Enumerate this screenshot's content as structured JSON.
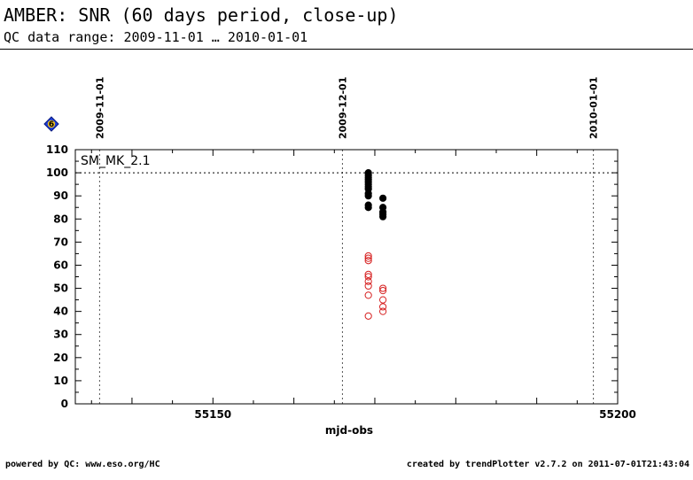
{
  "header": {
    "title": "AMBER: SNR (60 days period, close-up)",
    "subtitle": "QC data range: 2009-11-01 … 2010-01-01"
  },
  "footer": {
    "left": "powered by QC: www.eso.org/HC",
    "right": "created by trendPlotter v2.7.2 on 2011-07-01T21:43:04"
  },
  "badge": {
    "text": "6",
    "icon": "blue-diamond-icon"
  },
  "chart_data": {
    "type": "scatter",
    "xlabel": "mjd-obs",
    "ylabel": "",
    "xlim": [
      55133.0,
      55200.0
    ],
    "ylim": [
      0,
      110
    ],
    "xticks": [
      55150,
      55200
    ],
    "yticks": [
      0,
      10,
      20,
      30,
      40,
      50,
      60,
      70,
      80,
      90,
      100,
      110
    ],
    "reference_line": 100,
    "panel_label": "SM_MK_2.1",
    "date_markers": [
      {
        "label": "2009-11-01",
        "x": 55136.0
      },
      {
        "label": "2009-12-01",
        "x": 55166.0
      },
      {
        "label": "2010-01-01",
        "x": 55197.0
      }
    ],
    "grid": false,
    "series": [
      {
        "marker": "filled-circle",
        "color": "#000000",
        "points": [
          {
            "x": 55169.2,
            "y": 100
          },
          {
            "x": 55169.2,
            "y": 99
          },
          {
            "x": 55169.2,
            "y": 98
          },
          {
            "x": 55169.2,
            "y": 97
          },
          {
            "x": 55169.2,
            "y": 96
          },
          {
            "x": 55169.2,
            "y": 95
          },
          {
            "x": 55169.2,
            "y": 94
          },
          {
            "x": 55169.2,
            "y": 93
          },
          {
            "x": 55169.2,
            "y": 91
          },
          {
            "x": 55169.2,
            "y": 90
          },
          {
            "x": 55169.2,
            "y": 86
          },
          {
            "x": 55169.2,
            "y": 85
          },
          {
            "x": 55171.0,
            "y": 89
          },
          {
            "x": 55171.0,
            "y": 85
          },
          {
            "x": 55171.0,
            "y": 83
          },
          {
            "x": 55171.0,
            "y": 82
          },
          {
            "x": 55171.0,
            "y": 81
          }
        ]
      },
      {
        "marker": "open-circle",
        "color": "#d62020",
        "points": [
          {
            "x": 55169.2,
            "y": 64
          },
          {
            "x": 55169.2,
            "y": 63
          },
          {
            "x": 55169.2,
            "y": 62
          },
          {
            "x": 55169.2,
            "y": 56
          },
          {
            "x": 55169.2,
            "y": 55
          },
          {
            "x": 55169.2,
            "y": 53
          },
          {
            "x": 55169.2,
            "y": 51
          },
          {
            "x": 55169.2,
            "y": 47
          },
          {
            "x": 55169.2,
            "y": 38
          },
          {
            "x": 55171.0,
            "y": 50
          },
          {
            "x": 55171.0,
            "y": 49
          },
          {
            "x": 55171.0,
            "y": 45
          },
          {
            "x": 55171.0,
            "y": 42
          },
          {
            "x": 55171.0,
            "y": 40
          }
        ]
      }
    ]
  }
}
